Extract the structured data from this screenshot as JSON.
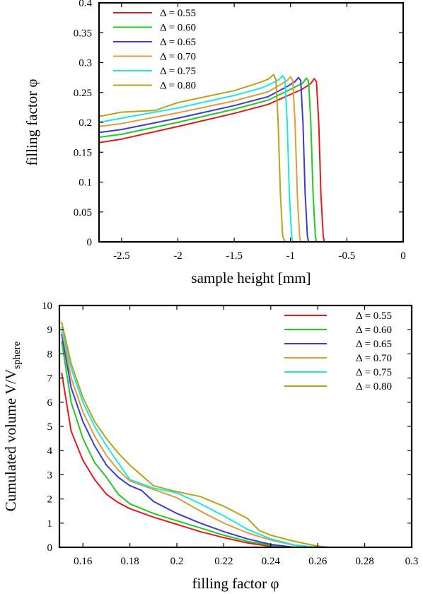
{
  "series_colors": {
    "d055": "#e31a1c",
    "d060": "#1fcc1f",
    "d065": "#3a3ad6",
    "d070": "#e39a3c",
    "d075": "#1ae8e8",
    "d080": "#b5a414"
  },
  "chart_data": [
    {
      "type": "line",
      "xlabel": "sample height [mm]",
      "ylabel": "filling factor φ",
      "xlim": [
        -2.7,
        0
      ],
      "ylim": [
        0,
        0.4
      ],
      "xticks": [
        "-2.5",
        "-2",
        "-1.5",
        "-1",
        "-0.5",
        "0"
      ],
      "xtick_values": [
        -2.5,
        -2,
        -1.5,
        -1,
        -0.5,
        0
      ],
      "yticks": [
        "0",
        "0.05",
        "0.1",
        "0.15",
        "0.2",
        "0.25",
        "0.3",
        "0.35",
        "0.4"
      ],
      "ytick_values": [
        0,
        0.05,
        0.1,
        0.15,
        0.2,
        0.25,
        0.3,
        0.35,
        0.4
      ],
      "legend_position": "top-left",
      "series": [
        {
          "name": "Δ = 0.55",
          "color": "#e31a1c",
          "x": [
            -2.7,
            -2.5,
            -2.0,
            -1.5,
            -1.2,
            -0.9,
            -0.82,
            -0.79,
            -0.77,
            -0.75,
            -0.73,
            -0.71,
            -0.7
          ],
          "y": [
            0.166,
            0.172,
            0.193,
            0.215,
            0.23,
            0.255,
            0.265,
            0.273,
            0.268,
            0.2,
            0.08,
            0.01,
            0.0
          ]
        },
        {
          "name": "Δ = 0.60",
          "color": "#1fcc1f",
          "x": [
            -2.7,
            -2.5,
            -2.0,
            -1.5,
            -1.2,
            -0.97,
            -0.89,
            -0.86,
            -0.84,
            -0.82,
            -0.8,
            -0.78,
            -0.77
          ],
          "y": [
            0.175,
            0.18,
            0.2,
            0.222,
            0.237,
            0.258,
            0.266,
            0.274,
            0.269,
            0.2,
            0.08,
            0.01,
            0.0
          ]
        },
        {
          "name": "Δ = 0.65",
          "color": "#3a3ad6",
          "x": [
            -2.7,
            -2.5,
            -2.0,
            -1.5,
            -1.2,
            -1.03,
            -0.96,
            -0.93,
            -0.91,
            -0.89,
            -0.87,
            -0.85,
            -0.84
          ],
          "y": [
            0.183,
            0.188,
            0.207,
            0.228,
            0.243,
            0.26,
            0.268,
            0.275,
            0.27,
            0.2,
            0.08,
            0.01,
            0.0
          ]
        },
        {
          "name": "Δ = 0.70",
          "color": "#e39a3c",
          "x": [
            -2.7,
            -2.5,
            -2.0,
            -1.5,
            -1.2,
            -1.1,
            -1.03,
            -1.0,
            -0.98,
            -0.96,
            -0.94,
            -0.92,
            -0.91
          ],
          "y": [
            0.193,
            0.198,
            0.216,
            0.236,
            0.251,
            0.262,
            0.27,
            0.276,
            0.27,
            0.2,
            0.08,
            0.01,
            0.0
          ]
        },
        {
          "name": "Δ = 0.75",
          "color": "#1ae8e8",
          "x": [
            -2.7,
            -2.5,
            -2.0,
            -1.5,
            -1.25,
            -1.17,
            -1.1,
            -1.07,
            -1.05,
            -1.03,
            -1.01,
            -0.99,
            -0.98
          ],
          "y": [
            0.2,
            0.207,
            0.224,
            0.245,
            0.258,
            0.265,
            0.272,
            0.278,
            0.272,
            0.2,
            0.08,
            0.01,
            0.0
          ]
        },
        {
          "name": "Δ = 0.80",
          "color": "#b5a414",
          "x": [
            -2.7,
            -2.5,
            -2.2,
            -2.0,
            -1.5,
            -1.3,
            -1.2,
            -1.15,
            -1.13,
            -1.11,
            -1.09,
            -1.07,
            -1.05
          ],
          "y": [
            0.21,
            0.217,
            0.22,
            0.233,
            0.253,
            0.265,
            0.272,
            0.28,
            0.272,
            0.2,
            0.08,
            0.01,
            0.0
          ]
        }
      ]
    },
    {
      "type": "line",
      "xlabel": "filling factor φ",
      "ylabel": "Cumulated volume V/V",
      "ylabel_subscript": "sphere",
      "xlim": [
        0.15,
        0.3
      ],
      "ylim": [
        0,
        10
      ],
      "xticks": [
        "0.16",
        "0.18",
        "0.2",
        "0.22",
        "0.24",
        "0.26",
        "0.28",
        "0.3"
      ],
      "xtick_values": [
        0.16,
        0.18,
        0.2,
        0.22,
        0.24,
        0.26,
        0.28,
        0.3
      ],
      "yticks": [
        "0",
        "1",
        "2",
        "3",
        "4",
        "5",
        "6",
        "7",
        "8",
        "9",
        "10"
      ],
      "ytick_values": [
        0,
        1,
        2,
        3,
        4,
        5,
        6,
        7,
        8,
        9,
        10
      ],
      "legend_position": "top-right",
      "series": [
        {
          "name": "Δ = 0.55",
          "color": "#e31a1c",
          "x": [
            0.151,
            0.155,
            0.16,
            0.165,
            0.17,
            0.175,
            0.18,
            0.19,
            0.2,
            0.21,
            0.22,
            0.23,
            0.24,
            0.245
          ],
          "y": [
            7.2,
            4.8,
            3.6,
            2.8,
            2.2,
            1.85,
            1.6,
            1.25,
            0.95,
            0.65,
            0.4,
            0.18,
            0.04,
            0.0
          ]
        },
        {
          "name": "Δ = 0.60",
          "color": "#1fcc1f",
          "x": [
            0.151,
            0.155,
            0.16,
            0.165,
            0.17,
            0.175,
            0.18,
            0.19,
            0.2,
            0.21,
            0.22,
            0.23,
            0.24,
            0.25
          ],
          "y": [
            8.5,
            6.0,
            4.5,
            3.5,
            2.9,
            2.2,
            1.8,
            1.4,
            1.1,
            0.8,
            0.5,
            0.25,
            0.08,
            0.0
          ]
        },
        {
          "name": "Δ = 0.65",
          "color": "#3a3ad6",
          "x": [
            0.151,
            0.155,
            0.16,
            0.165,
            0.17,
            0.175,
            0.18,
            0.185,
            0.19,
            0.2,
            0.21,
            0.22,
            0.23,
            0.24,
            0.25
          ],
          "y": [
            8.8,
            6.6,
            5.2,
            4.2,
            3.4,
            2.9,
            2.55,
            2.35,
            1.9,
            1.4,
            1.0,
            0.65,
            0.35,
            0.12,
            0.0
          ]
        },
        {
          "name": "Δ = 0.70",
          "color": "#e39a3c",
          "x": [
            0.151,
            0.155,
            0.16,
            0.165,
            0.17,
            0.175,
            0.18,
            0.19,
            0.2,
            0.21,
            0.22,
            0.23,
            0.24,
            0.25,
            0.255
          ],
          "y": [
            9.0,
            7.0,
            5.6,
            4.6,
            3.8,
            3.2,
            2.75,
            2.4,
            2.05,
            1.5,
            1.0,
            0.6,
            0.3,
            0.08,
            0.0
          ]
        },
        {
          "name": "Δ = 0.75",
          "color": "#1ae8e8",
          "x": [
            0.151,
            0.155,
            0.16,
            0.165,
            0.17,
            0.175,
            0.18,
            0.19,
            0.2,
            0.21,
            0.22,
            0.23,
            0.24,
            0.25,
            0.26
          ],
          "y": [
            9.1,
            7.4,
            6.0,
            5.0,
            4.2,
            3.5,
            2.8,
            2.45,
            2.25,
            1.8,
            1.3,
            0.75,
            0.35,
            0.1,
            0.0
          ]
        },
        {
          "name": "Δ = 0.80",
          "color": "#b5a414",
          "x": [
            0.151,
            0.155,
            0.16,
            0.165,
            0.17,
            0.175,
            0.18,
            0.19,
            0.2,
            0.21,
            0.22,
            0.23,
            0.235,
            0.24,
            0.25,
            0.26,
            0.265
          ],
          "y": [
            9.3,
            7.6,
            6.2,
            5.2,
            4.5,
            3.9,
            3.4,
            2.55,
            2.3,
            2.1,
            1.7,
            1.2,
            0.7,
            0.5,
            0.25,
            0.05,
            0.0
          ]
        }
      ]
    }
  ]
}
